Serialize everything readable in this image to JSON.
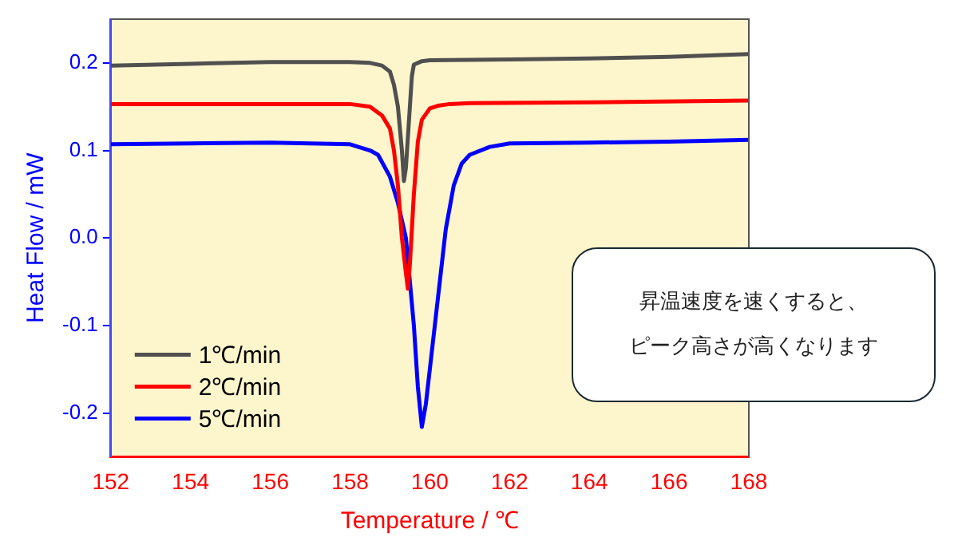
{
  "chart_data": {
    "type": "line",
    "xlabel": "Temperature / ℃",
    "ylabel": "Heat Flow / mW",
    "xlim": [
      152,
      168
    ],
    "xticks": [
      152,
      154,
      156,
      158,
      160,
      162,
      164,
      166,
      168
    ],
    "ylim": [
      -0.25,
      0.25
    ],
    "yticks": [
      -0.2,
      -0.1,
      {
        "value": 0,
        "label": "0.0"
      },
      0.1,
      0.2
    ],
    "grid": false,
    "legend": "bottom left",
    "marker": "none",
    "line_style": "solid",
    "annotations": [
      "昇温速度を速くすると、",
      "ピーク高さが高くなります"
    ],
    "series": [
      {
        "name": "1℃/min",
        "color": "#505050",
        "x": [
          152,
          154,
          156,
          158,
          158.5,
          158.8,
          159.0,
          159.1,
          159.2,
          159.3,
          159.35,
          159.4,
          159.5,
          159.55,
          159.6,
          159.8,
          160,
          162,
          164,
          166,
          168
        ],
        "values": [
          0.197,
          0.199,
          0.201,
          0.201,
          0.2,
          0.197,
          0.19,
          0.175,
          0.15,
          0.1,
          0.065,
          0.08,
          0.15,
          0.185,
          0.198,
          0.202,
          0.203,
          0.204,
          0.205,
          0.207,
          0.21
        ]
      },
      {
        "name": "2℃/min",
        "color": "#ff0000",
        "x": [
          152,
          154,
          156,
          158,
          158.5,
          158.8,
          159.0,
          159.1,
          159.2,
          159.3,
          159.4,
          159.45,
          159.5,
          159.6,
          159.7,
          159.8,
          160,
          160.2,
          160.5,
          161,
          164,
          168
        ],
        "values": [
          0.153,
          0.153,
          0.153,
          0.153,
          0.15,
          0.14,
          0.125,
          0.1,
          0.06,
          0.0,
          -0.04,
          -0.058,
          -0.03,
          0.05,
          0.11,
          0.135,
          0.148,
          0.151,
          0.153,
          0.154,
          0.155,
          0.157
        ]
      },
      {
        "name": "5℃/min",
        "color": "#0000ff",
        "x": [
          152,
          154,
          156,
          158,
          158.5,
          158.7,
          159.0,
          159.2,
          159.4,
          159.6,
          159.7,
          159.8,
          159.9,
          160.0,
          160.2,
          160.4,
          160.6,
          160.8,
          161,
          161.5,
          162,
          164,
          166,
          168
        ],
        "values": [
          0.107,
          0.108,
          0.109,
          0.107,
          0.1,
          0.095,
          0.07,
          0.04,
          0.0,
          -0.1,
          -0.17,
          -0.216,
          -0.19,
          -0.15,
          -0.07,
          0.01,
          0.06,
          0.085,
          0.095,
          0.104,
          0.108,
          0.109,
          0.11,
          0.112
        ]
      }
    ]
  }
}
